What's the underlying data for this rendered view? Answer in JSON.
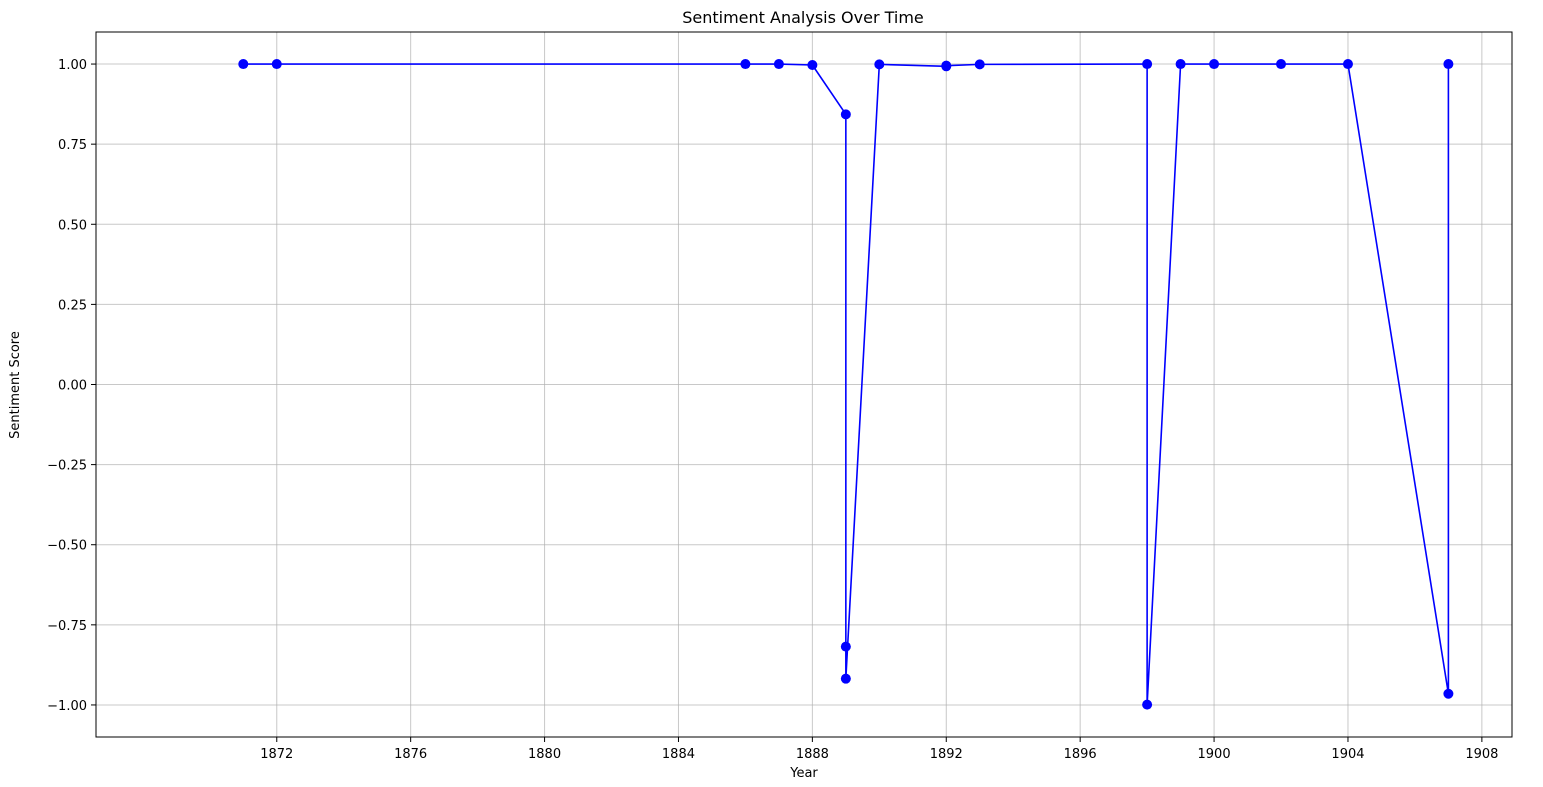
{
  "chart_data": {
    "type": "line",
    "title": "Sentiment Analysis Over Time",
    "xlabel": "Year",
    "ylabel": "Sentiment Score",
    "xlim": [
      1866.6,
      1908.9
    ],
    "ylim": [
      -1.1,
      1.1
    ],
    "grid": true,
    "marker": "circle",
    "colors": {
      "series": "#0000ff",
      "grid": "#b0b0b0",
      "axis": "#000000"
    },
    "x_ticks": [
      {
        "value": 1872,
        "label": "1872"
      },
      {
        "value": 1876,
        "label": "1876"
      },
      {
        "value": 1880,
        "label": "1880"
      },
      {
        "value": 1884,
        "label": "1884"
      },
      {
        "value": 1888,
        "label": "1888"
      },
      {
        "value": 1892,
        "label": "1892"
      },
      {
        "value": 1896,
        "label": "1896"
      },
      {
        "value": 1900,
        "label": "1900"
      },
      {
        "value": 1904,
        "label": "1904"
      },
      {
        "value": 1908,
        "label": "1908"
      }
    ],
    "y_ticks": [
      {
        "value": 1.0,
        "label": "1.00"
      },
      {
        "value": 0.75,
        "label": "0.75"
      },
      {
        "value": 0.5,
        "label": "0.50"
      },
      {
        "value": 0.25,
        "label": "0.25"
      },
      {
        "value": 0.0,
        "label": "0.00"
      },
      {
        "value": -0.25,
        "label": "−0.25"
      },
      {
        "value": -0.5,
        "label": "−0.50"
      },
      {
        "value": -0.75,
        "label": "−0.75"
      },
      {
        "value": -1.0,
        "label": "−1.00"
      }
    ],
    "series": [
      {
        "x": [
          1871,
          1872,
          1886,
          1887,
          1888,
          1889,
          1889,
          1889,
          1890,
          1892,
          1892,
          1893,
          1898,
          1898,
          1899,
          1900,
          1902,
          1904,
          1907,
          1907
        ],
        "values": [
          1.0,
          1.0,
          1.0,
          1.0,
          0.997,
          0.843,
          -0.818,
          -0.918,
          0.999,
          0.993,
          0.995,
          0.999,
          1.0,
          -0.999,
          1.0,
          1.0,
          1.0,
          1.0,
          -0.965,
          1.0
        ]
      }
    ]
  }
}
